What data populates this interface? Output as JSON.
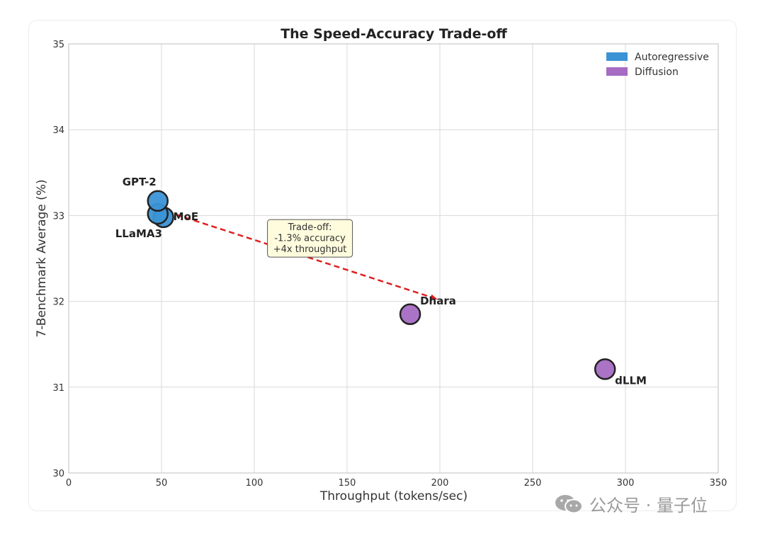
{
  "chart_data": {
    "type": "scatter",
    "title": "The Speed-Accuracy Trade-off",
    "xlabel": "Throughput (tokens/sec)",
    "ylabel": "7-Benchmark Average (%)",
    "xlim": [
      0,
      350
    ],
    "ylim": [
      30,
      35
    ],
    "xticks": [
      0,
      50,
      100,
      150,
      200,
      250,
      300,
      350
    ],
    "yticks": [
      30,
      31,
      32,
      33,
      34,
      35
    ],
    "grid": true,
    "legend_position": "top-right",
    "legend": [
      {
        "name": "Autoregressive",
        "color": "#3b93d6"
      },
      {
        "name": "Diffusion",
        "color": "#a66bc2"
      }
    ],
    "points": [
      {
        "label": "GPT-2",
        "x": 48,
        "y": 33.17,
        "group": "Autoregressive"
      },
      {
        "label": "LLaMA3",
        "x": 48,
        "y": 33.02,
        "group": "Autoregressive"
      },
      {
        "label": "MoE",
        "x": 51,
        "y": 32.98,
        "group": "Autoregressive"
      },
      {
        "label": "Dhara",
        "x": 184,
        "y": 31.85,
        "group": "Diffusion"
      },
      {
        "label": "dLLM",
        "x": 289,
        "y": 31.21,
        "group": "Diffusion"
      }
    ],
    "arrow": {
      "from": [
        58,
        33.01
      ],
      "to": [
        198,
        32.03
      ],
      "color": "#e02020"
    },
    "annotation": {
      "lines": [
        "Trade-off:",
        "-1.3% accuracy",
        "+4x throughput"
      ],
      "x": 130,
      "y": 32.87
    }
  },
  "watermark": {
    "text": "公众号 · 量子位",
    "icon": "wechat-icon"
  }
}
